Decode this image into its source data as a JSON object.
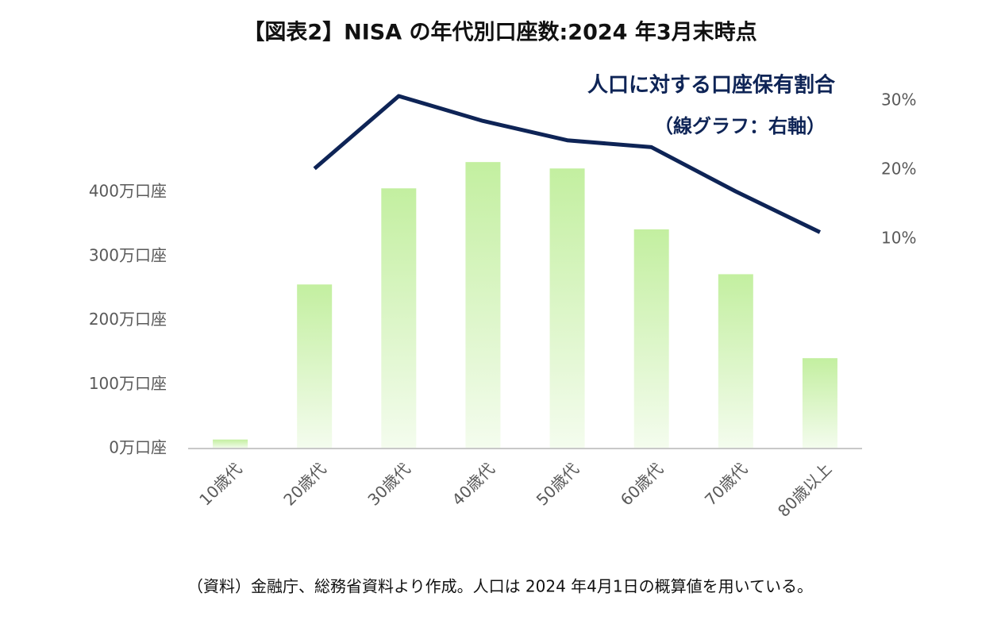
{
  "chart_data": {
    "type": "combo",
    "title": "【図表2】NISA の年代別口座数:2024 年3月末時点",
    "categories": [
      "10歳代",
      "20歳代",
      "30歳代",
      "40歳代",
      "50歳代",
      "60歳代",
      "70歳代",
      "80歳以上"
    ],
    "series": [
      {
        "type": "bar",
        "color": "#c3efa0",
        "values": [
          14,
          256,
          406,
          447,
          437,
          342,
          272,
          141
        ]
      },
      {
        "type": "line",
        "name": "人口に対する口座保有割合",
        "axis": "y2",
        "color": "#0e2456",
        "values": [
          null,
          20.2,
          30.7,
          27.1,
          24.3,
          23.3,
          16.9,
          11.0
        ]
      }
    ],
    "annotation": "（線グラフ：右軸）",
    "ylim": [
      0,
      550
    ],
    "yticks": [
      {
        "value": 0,
        "label": "0万口座"
      },
      {
        "value": 100,
        "label": "100万口座"
      },
      {
        "value": 200,
        "label": "200万口座"
      },
      {
        "value": 300,
        "label": "300万口座"
      },
      {
        "value": 400,
        "label": "400万口座"
      }
    ],
    "y2lim": [
      -20.3,
      30.7
    ],
    "y2ticks": [
      {
        "value": 10,
        "label": "10%"
      },
      {
        "value": 20,
        "label": "20%"
      },
      {
        "value": 30,
        "label": "30%"
      }
    ],
    "source": "（資料）金融庁、総務省資料より作成。人口は 2024 年4月1日の概算値を用いている。"
  }
}
